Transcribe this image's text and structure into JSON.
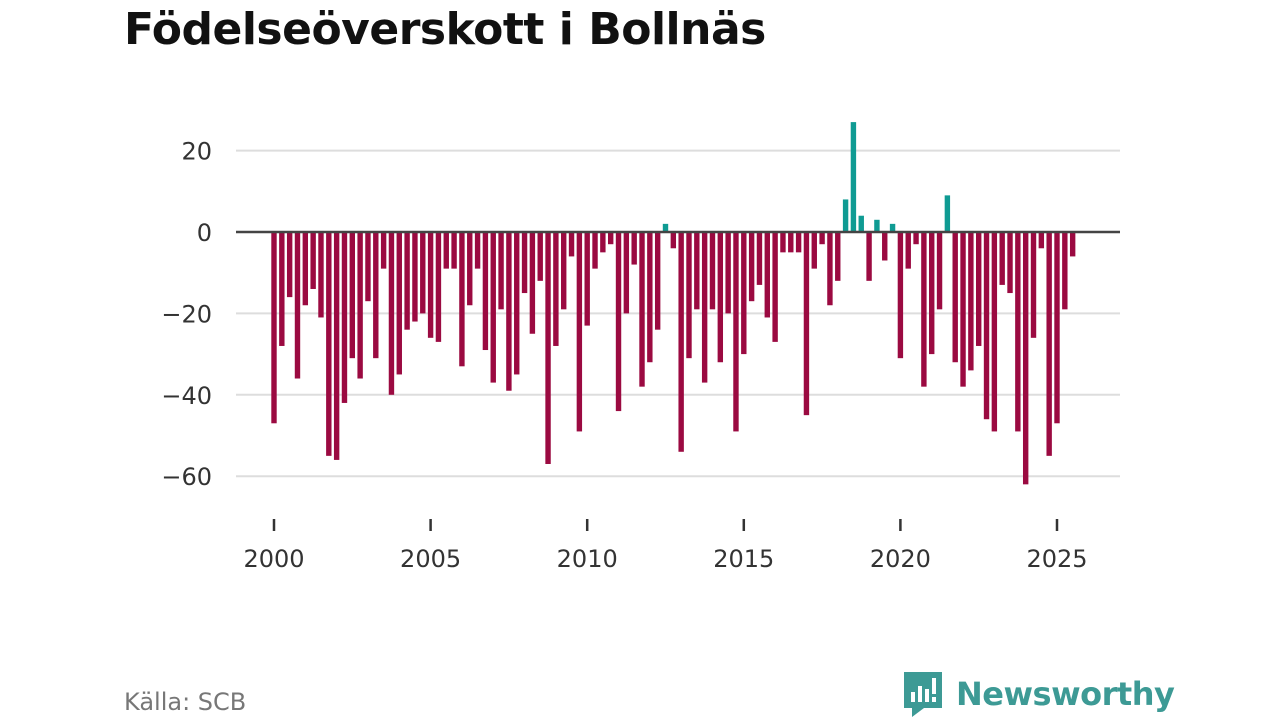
{
  "title": "Födelseöverskott i Bollnäs",
  "source": "Källa: SCB",
  "brand": {
    "name": "Newsworthy",
    "icon": "newsworthy-logo-icon"
  },
  "colors": {
    "positive": "#0f9b93",
    "negative": "#9b0a41",
    "grid": "#dddddd",
    "zero_line": "#444444",
    "brand": "#3d9a95"
  },
  "chart_data": {
    "type": "bar",
    "title": "Födelseöverskott i Bollnäs",
    "xlabel": "",
    "ylabel": "",
    "ylim": [
      -68,
      28
    ],
    "xlim": [
      1999.2,
      2027.0
    ],
    "grid": true,
    "y_ticks": [
      20,
      0,
      -20,
      -40,
      -60
    ],
    "x_ticks": [
      2000,
      2005,
      2010,
      2015,
      2020,
      2025
    ],
    "y_tick_labels": [
      "20",
      "0",
      "−20",
      "−40",
      "−60"
    ],
    "x_tick_labels": [
      "2000",
      "2005",
      "2010",
      "2015",
      "2020",
      "2025"
    ],
    "x_start": 2000.0,
    "x_step": 0.25,
    "values": [
      -47,
      -28,
      -16,
      -36,
      -18,
      -14,
      -21,
      -55,
      -56,
      -42,
      -31,
      -36,
      -17,
      -31,
      -9,
      -40,
      -35,
      -24,
      -22,
      -20,
      -26,
      -27,
      -9,
      -9,
      -33,
      -18,
      -9,
      -29,
      -37,
      -19,
      -39,
      -35,
      -15,
      -25,
      -12,
      -57,
      -28,
      -19,
      -6,
      -49,
      -23,
      -9,
      -5,
      -3,
      -44,
      -20,
      -8,
      -38,
      -32,
      -24,
      2,
      -4,
      -54,
      -31,
      -19,
      -37,
      -19,
      -32,
      -20,
      -49,
      -30,
      -17,
      -13,
      -21,
      -27,
      -5,
      -5,
      -5,
      -45,
      -9,
      -3,
      -18,
      -12,
      8,
      27,
      4,
      -12,
      3,
      -7,
      2,
      -31,
      -9,
      -3,
      -38,
      -30,
      -19,
      9,
      -32,
      -38,
      -34,
      -28,
      -46,
      -49,
      -13,
      -15,
      -49,
      -62,
      -26,
      -4,
      -55,
      -47,
      -19,
      -6
    ]
  }
}
